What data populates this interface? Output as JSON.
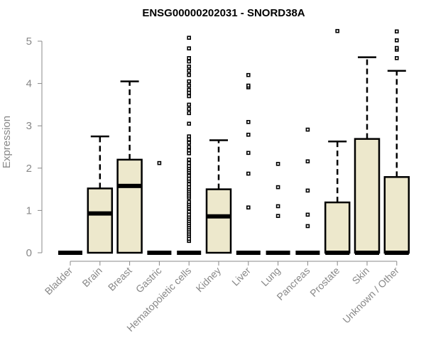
{
  "chart_data": {
    "type": "box",
    "title": "ENSG00000202031 - SNORD38A",
    "xlabel": "",
    "ylabel": "Expression",
    "ylim": [
      0,
      5
    ],
    "yticks": [
      "0",
      "1",
      "2",
      "3",
      "4",
      "5"
    ],
    "box_fill": "#ede8cc",
    "grid": false,
    "categories": [
      "Bladder",
      "Brain",
      "Breast",
      "Gastric",
      "Hematopoietic cells",
      "Kidney",
      "Liver",
      "Lung",
      "Pancreas",
      "Prostate",
      "Skin",
      "Unknown / Other"
    ],
    "boxes": [
      {
        "min": 0,
        "q1": 0,
        "median": 0,
        "q3": 0,
        "max": 0,
        "outliers": []
      },
      {
        "min": 0,
        "q1": 0,
        "median": 0.93,
        "q3": 1.52,
        "max": 2.75,
        "outliers": []
      },
      {
        "min": 0,
        "q1": 0,
        "median": 1.58,
        "q3": 2.2,
        "max": 4.05,
        "outliers": []
      },
      {
        "min": 0,
        "q1": 0,
        "median": 0,
        "q3": 0,
        "max": 0,
        "outliers": [
          2.12
        ]
      },
      {
        "min": 0,
        "q1": 0,
        "median": 0,
        "q3": 0,
        "max": 0,
        "outliers": [
          0.28,
          0.33,
          0.4,
          0.45,
          0.5,
          0.55,
          0.6,
          0.65,
          0.7,
          0.75,
          0.8,
          0.85,
          0.9,
          0.97,
          1.05,
          1.1,
          1.15,
          1.2,
          1.3,
          1.35,
          1.4,
          1.45,
          1.5,
          1.55,
          1.62,
          1.7,
          1.75,
          1.82,
          1.9,
          1.95,
          2.0,
          2.05,
          2.12,
          2.2,
          2.35,
          2.42,
          2.5,
          2.6,
          2.68,
          2.75,
          3.05,
          3.3,
          3.4,
          3.5,
          3.7,
          3.78,
          3.85,
          3.95,
          4.05,
          4.2,
          4.3,
          4.4,
          4.52,
          4.6,
          4.83,
          5.08
        ]
      },
      {
        "min": 0,
        "q1": 0,
        "median": 0.86,
        "q3": 1.5,
        "max": 2.66,
        "outliers": []
      },
      {
        "min": 0,
        "q1": 0,
        "median": 0,
        "q3": 0,
        "max": 0,
        "outliers": [
          1.07,
          1.87,
          2.36,
          2.79,
          3.09,
          3.91,
          3.95,
          4.2
        ]
      },
      {
        "min": 0,
        "q1": 0,
        "median": 0,
        "q3": 0,
        "max": 0,
        "outliers": [
          0.87,
          1.1,
          1.55,
          2.1
        ]
      },
      {
        "min": 0,
        "q1": 0,
        "median": 0,
        "q3": 0,
        "max": 0,
        "outliers": [
          0.63,
          0.9,
          1.47,
          2.16,
          2.91
        ]
      },
      {
        "min": 0,
        "q1": 0,
        "median": 0,
        "q3": 1.19,
        "max": 2.63,
        "outliers": [
          5.24
        ]
      },
      {
        "min": 0,
        "q1": 0,
        "median": 0,
        "q3": 2.69,
        "max": 4.62,
        "outliers": []
      },
      {
        "min": 0,
        "q1": 0,
        "median": 0,
        "q3": 1.79,
        "max": 4.3,
        "outliers": [
          4.6,
          4.8,
          4.84,
          5.02,
          5.23
        ]
      }
    ]
  }
}
